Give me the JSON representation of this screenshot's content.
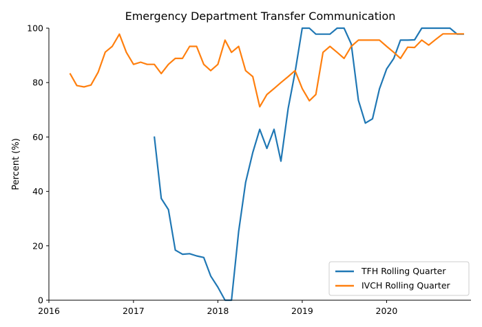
{
  "chart_data": {
    "type": "line",
    "title": "Emergency Department Transfer Communication",
    "xlabel": "",
    "ylabel": "Percent (%)",
    "xlim": [
      "2016-01-01",
      "2020-12-31"
    ],
    "ylim": [
      0,
      100
    ],
    "x_ticks": [
      "2016",
      "2017",
      "2018",
      "2019",
      "2020"
    ],
    "y_ticks": [
      "0",
      "20",
      "40",
      "60",
      "80",
      "100"
    ],
    "legend_position": "lower-right",
    "grid": false,
    "series": [
      {
        "name": "TFH Rolling Quarter",
        "color": "#1f77b4",
        "points": [
          [
            "2017-04-01",
            60.2
          ],
          [
            "2017-05-01",
            37.4
          ],
          [
            "2017-06-01",
            33.3
          ],
          [
            "2017-07-01",
            18.4
          ],
          [
            "2017-08-01",
            16.9
          ],
          [
            "2017-09-01",
            17.1
          ],
          [
            "2017-10-01",
            16.3
          ],
          [
            "2017-11-01",
            15.7
          ],
          [
            "2017-12-01",
            8.9
          ],
          [
            "2018-01-01",
            4.8
          ],
          [
            "2018-02-01",
            0.0
          ],
          [
            "2018-03-01",
            0.0
          ],
          [
            "2018-04-01",
            25.3
          ],
          [
            "2018-05-01",
            43.3
          ],
          [
            "2018-06-01",
            54.3
          ],
          [
            "2018-07-01",
            62.8
          ],
          [
            "2018-08-01",
            55.8
          ],
          [
            "2018-09-01",
            62.8
          ],
          [
            "2018-10-01",
            51.1
          ],
          [
            "2018-11-01",
            70.5
          ],
          [
            "2018-12-01",
            83.8
          ],
          [
            "2019-01-01",
            100
          ],
          [
            "2019-02-01",
            100
          ],
          [
            "2019-03-01",
            97.8
          ],
          [
            "2019-04-01",
            97.8
          ],
          [
            "2019-05-01",
            97.8
          ],
          [
            "2019-06-01",
            100
          ],
          [
            "2019-07-01",
            100
          ],
          [
            "2019-08-01",
            94.2
          ],
          [
            "2019-09-01",
            73.5
          ],
          [
            "2019-10-01",
            65.1
          ],
          [
            "2019-11-01",
            66.7
          ],
          [
            "2019-12-01",
            77.7
          ],
          [
            "2020-01-01",
            85.0
          ],
          [
            "2020-02-01",
            88.9
          ],
          [
            "2020-03-01",
            95.6
          ],
          [
            "2020-04-01",
            95.6
          ],
          [
            "2020-05-01",
            95.7
          ],
          [
            "2020-06-01",
            100
          ],
          [
            "2020-07-01",
            100
          ],
          [
            "2020-08-01",
            100
          ],
          [
            "2020-09-01",
            100
          ],
          [
            "2020-10-01",
            100
          ],
          [
            "2020-11-01",
            97.8
          ],
          [
            "2020-12-01",
            97.8
          ]
        ]
      },
      {
        "name": "IVCH Rolling Quarter",
        "color": "#ff7f0e",
        "points": [
          [
            "2016-04-01",
            83.4
          ],
          [
            "2016-05-01",
            78.9
          ],
          [
            "2016-06-01",
            78.4
          ],
          [
            "2016-07-01",
            79.1
          ],
          [
            "2016-08-01",
            83.8
          ],
          [
            "2016-09-01",
            91.2
          ],
          [
            "2016-10-01",
            93.3
          ],
          [
            "2016-11-01",
            97.8
          ],
          [
            "2016-12-01",
            91.1
          ],
          [
            "2017-01-01",
            86.7
          ],
          [
            "2017-02-01",
            87.5
          ],
          [
            "2017-03-01",
            86.7
          ],
          [
            "2017-04-01",
            86.7
          ],
          [
            "2017-05-01",
            83.3
          ],
          [
            "2017-06-01",
            86.7
          ],
          [
            "2017-07-01",
            88.9
          ],
          [
            "2017-08-01",
            88.9
          ],
          [
            "2017-09-01",
            93.3
          ],
          [
            "2017-10-01",
            93.3
          ],
          [
            "2017-11-01",
            86.7
          ],
          [
            "2017-12-01",
            84.4
          ],
          [
            "2018-01-01",
            86.7
          ],
          [
            "2018-02-01",
            95.6
          ],
          [
            "2018-03-01",
            91.1
          ],
          [
            "2018-04-01",
            93.3
          ],
          [
            "2018-05-01",
            84.4
          ],
          [
            "2018-06-01",
            82.2
          ],
          [
            "2018-07-01",
            71.1
          ],
          [
            "2018-08-01",
            75.6
          ],
          [
            "2018-09-01",
            77.8
          ],
          [
            "2018-10-01",
            80.0
          ],
          [
            "2018-11-01",
            82.2
          ],
          [
            "2018-12-01",
            84.4
          ],
          [
            "2019-01-01",
            77.8
          ],
          [
            "2019-02-01",
            73.3
          ],
          [
            "2019-03-01",
            75.6
          ],
          [
            "2019-04-01",
            91.1
          ],
          [
            "2019-05-01",
            93.3
          ],
          [
            "2019-06-01",
            91.1
          ],
          [
            "2019-07-01",
            88.9
          ],
          [
            "2019-08-01",
            93.3
          ],
          [
            "2019-09-01",
            95.6
          ],
          [
            "2019-10-01",
            95.6
          ],
          [
            "2019-11-01",
            95.6
          ],
          [
            "2019-12-01",
            95.6
          ],
          [
            "2020-01-01",
            93.3
          ],
          [
            "2020-02-01",
            91.1
          ],
          [
            "2020-03-01",
            88.9
          ],
          [
            "2020-04-01",
            93.0
          ],
          [
            "2020-05-01",
            92.9
          ],
          [
            "2020-06-01",
            95.6
          ],
          [
            "2020-07-01",
            93.8
          ],
          [
            "2020-08-01",
            95.9
          ],
          [
            "2020-09-01",
            97.9
          ],
          [
            "2020-10-01",
            97.9
          ],
          [
            "2020-11-01",
            97.9
          ],
          [
            "2020-12-01",
            97.9
          ]
        ]
      }
    ]
  }
}
